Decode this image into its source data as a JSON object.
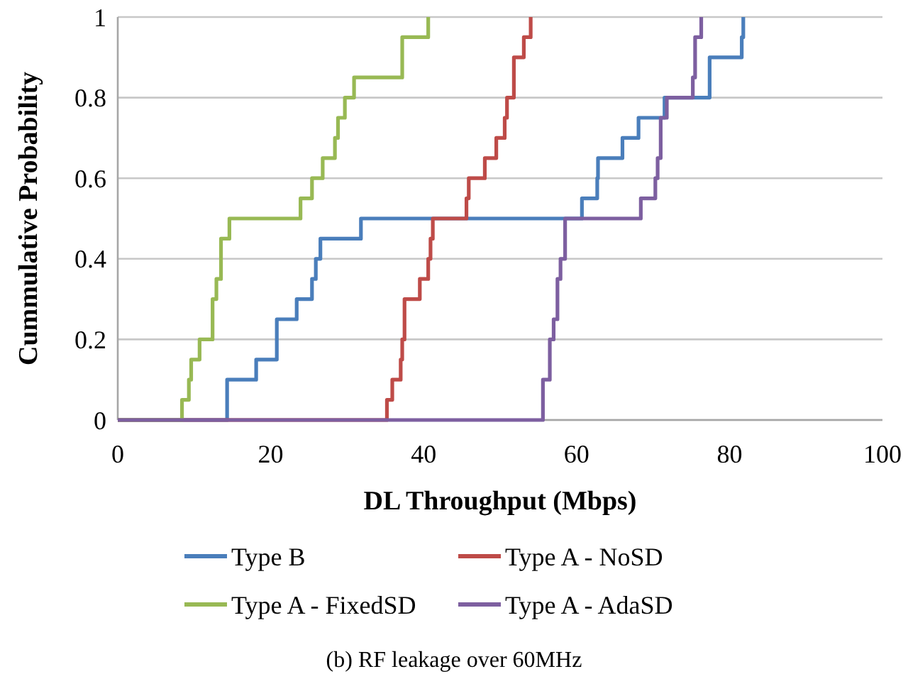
{
  "chart_data": {
    "type": "step",
    "xlabel": "DL Throughput (Mbps)",
    "ylabel": "Cummulative Probability",
    "xlim": [
      0,
      100
    ],
    "xticks": [
      0,
      20,
      40,
      60,
      80,
      100
    ],
    "ylim": [
      0,
      1
    ],
    "yticks": [
      0,
      0.2,
      0.4,
      0.6,
      0.8,
      1
    ],
    "grid": "y",
    "legend": "bottom",
    "line_style": "solid",
    "marker": "none",
    "annotations": [
      "(b) RF leakage over 60MHz"
    ],
    "series": [
      {
        "name": "Type B",
        "color": "#4a7ebb",
        "x": [
          0,
          14.3,
          18.1,
          20.8,
          23.4,
          25.4,
          25.9,
          26.5,
          31.8,
          60.7,
          62.7,
          62.8,
          66.0,
          68.1,
          71.5,
          77.4,
          81.6,
          81.8
        ],
        "values": [
          0,
          0.1,
          0.15,
          0.25,
          0.3,
          0.35,
          0.4,
          0.45,
          0.5,
          0.55,
          0.6,
          0.65,
          0.7,
          0.75,
          0.8,
          0.9,
          0.95,
          1
        ]
      },
      {
        "name": "Type A - NoSD",
        "color": "#be4b48",
        "x": [
          0,
          35.2,
          35.9,
          37.0,
          37.2,
          37.5,
          39.5,
          40.6,
          40.9,
          41.2,
          45.6,
          45.9,
          48.0,
          49.5,
          50.6,
          50.9,
          51.8,
          53.1,
          54.0
        ],
        "values": [
          0,
          0.05,
          0.1,
          0.15,
          0.2,
          0.3,
          0.35,
          0.4,
          0.45,
          0.5,
          0.55,
          0.6,
          0.65,
          0.7,
          0.75,
          0.8,
          0.9,
          0.95,
          1
        ]
      },
      {
        "name": "Type A - FixedSD",
        "color": "#98b954",
        "x": [
          0,
          8.4,
          9.3,
          9.6,
          10.7,
          12.4,
          12.9,
          13.5,
          14.6,
          23.9,
          25.4,
          26.8,
          28.4,
          28.8,
          29.7,
          30.9,
          37.2,
          40.6
        ],
        "values": [
          0,
          0.05,
          0.1,
          0.15,
          0.2,
          0.3,
          0.35,
          0.45,
          0.5,
          0.55,
          0.6,
          0.65,
          0.7,
          0.75,
          0.8,
          0.85,
          0.95,
          1
        ]
      },
      {
        "name": "Type A - AdaSD",
        "color": "#7d5fa0",
        "x": [
          0,
          55.6,
          56.5,
          57.0,
          57.5,
          57.9,
          58.5,
          68.4,
          70.3,
          70.6,
          71.0,
          71.8,
          75.2,
          75.5,
          76.3
        ],
        "values": [
          0,
          0.1,
          0.2,
          0.25,
          0.35,
          0.4,
          0.5,
          0.55,
          0.6,
          0.65,
          0.75,
          0.8,
          0.85,
          0.95,
          1
        ]
      }
    ]
  }
}
